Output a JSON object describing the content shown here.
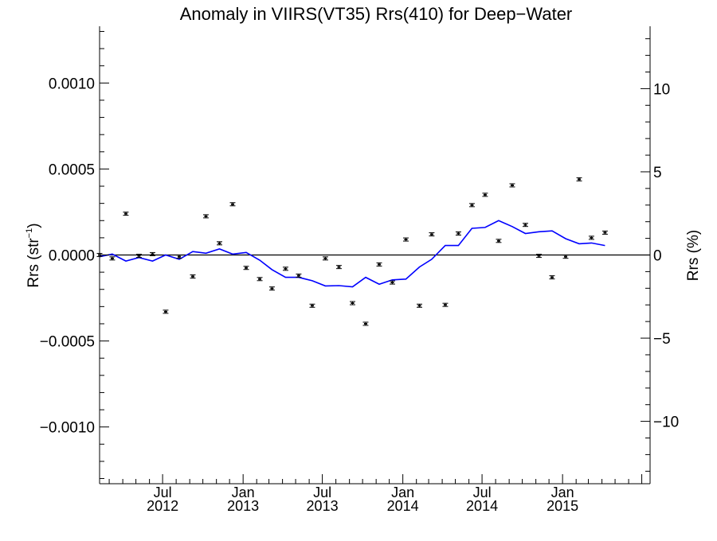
{
  "chart_data": {
    "type": "scatter",
    "title": "Anomaly in VIIRS(VT35) Rrs(410) for Deep−Water",
    "ylabel_left": {
      "main": "Rrs (str",
      "sup": "−1",
      "close": ")"
    },
    "ylabel_right": "Rrs (%)",
    "xlim": [
      "2012-02-08",
      "2015-07-20"
    ],
    "ylim_left": [
      -0.00133,
      0.00133
    ],
    "ylim_right": [
      -13.75,
      13.75
    ],
    "left_yticks": [
      {
        "value": 0.001,
        "label": "0.0010"
      },
      {
        "value": 0.0005,
        "label": "0.0005"
      },
      {
        "value": 0.0,
        "label": "0.0000"
      },
      {
        "value": -0.0005,
        "label": "−0.0005"
      },
      {
        "value": -0.001,
        "label": "−0.0010"
      }
    ],
    "right_yticks": [
      {
        "value": 10,
        "label": "10"
      },
      {
        "value": 5,
        "label": "5"
      },
      {
        "value": 0,
        "label": "0"
      },
      {
        "value": -5,
        "label": "−5"
      },
      {
        "value": -10,
        "label": "−10"
      }
    ],
    "xticks": [
      {
        "date": "2012-07-01",
        "month": "Jul",
        "year": "2012"
      },
      {
        "date": "2013-01-01",
        "month": "Jan",
        "year": "2013"
      },
      {
        "date": "2013-07-01",
        "month": "Jul",
        "year": "2013"
      },
      {
        "date": "2014-01-01",
        "month": "Jan",
        "year": "2014"
      },
      {
        "date": "2014-07-01",
        "month": "Jul",
        "year": "2014"
      },
      {
        "date": "2015-01-01",
        "month": "Jan",
        "year": "2015"
      }
    ],
    "zero_line": true,
    "series": [
      {
        "kind": "points_with_error_bars",
        "color": "#000000",
        "points": [
          {
            "x": "2012-02-08",
            "y": 0.0
          },
          {
            "x": "2012-03-08",
            "y": -2e-05
          },
          {
            "x": "2012-04-08",
            "y": 0.00024
          },
          {
            "x": "2012-05-08",
            "y": -5e-06
          },
          {
            "x": "2012-06-08",
            "y": 5e-06
          },
          {
            "x": "2012-07-08",
            "y": -0.00033
          },
          {
            "x": "2012-08-08",
            "y": -1e-05
          },
          {
            "x": "2012-09-08",
            "y": -0.000125
          },
          {
            "x": "2012-10-08",
            "y": 0.000225
          },
          {
            "x": "2012-11-08",
            "y": 6.8e-05
          },
          {
            "x": "2012-12-08",
            "y": 0.000295
          },
          {
            "x": "2013-01-08",
            "y": -7.5e-05
          },
          {
            "x": "2013-02-08",
            "y": -0.00014
          },
          {
            "x": "2013-03-08",
            "y": -0.000195
          },
          {
            "x": "2013-04-08",
            "y": -8e-05
          },
          {
            "x": "2013-05-08",
            "y": -0.00012
          },
          {
            "x": "2013-06-08",
            "y": -0.000295
          },
          {
            "x": "2013-07-08",
            "y": -2e-05
          },
          {
            "x": "2013-08-08",
            "y": -7e-05
          },
          {
            "x": "2013-09-08",
            "y": -0.00028
          },
          {
            "x": "2013-10-08",
            "y": -0.0004
          },
          {
            "x": "2013-11-08",
            "y": -5.5e-05
          },
          {
            "x": "2013-12-08",
            "y": -0.00016
          },
          {
            "x": "2014-01-08",
            "y": 9e-05
          },
          {
            "x": "2014-02-08",
            "y": -0.000295
          },
          {
            "x": "2014-03-08",
            "y": 0.00012
          },
          {
            "x": "2014-04-08",
            "y": -0.00029
          },
          {
            "x": "2014-05-08",
            "y": 0.000125
          },
          {
            "x": "2014-06-08",
            "y": 0.00029
          },
          {
            "x": "2014-07-08",
            "y": 0.00035
          },
          {
            "x": "2014-08-08",
            "y": 8.2e-05
          },
          {
            "x": "2014-09-08",
            "y": 0.000405
          },
          {
            "x": "2014-10-08",
            "y": 0.000175
          },
          {
            "x": "2014-11-08",
            "y": -5e-06
          },
          {
            "x": "2014-12-08",
            "y": -0.00013
          },
          {
            "x": "2015-01-08",
            "y": -1e-05
          },
          {
            "x": "2015-02-08",
            "y": 0.00044
          },
          {
            "x": "2015-03-08",
            "y": 0.0001
          },
          {
            "x": "2015-04-08",
            "y": 0.00013
          }
        ]
      },
      {
        "kind": "line",
        "color": "#0000ff",
        "points": [
          {
            "x": "2012-02-08",
            "y": -1e-05
          },
          {
            "x": "2012-03-08",
            "y": 5e-06
          },
          {
            "x": "2012-04-08",
            "y": -3.5e-05
          },
          {
            "x": "2012-05-08",
            "y": -1.5e-05
          },
          {
            "x": "2012-06-08",
            "y": -3.5e-05
          },
          {
            "x": "2012-07-08",
            "y": 0.0
          },
          {
            "x": "2012-08-08",
            "y": -2.5e-05
          },
          {
            "x": "2012-09-08",
            "y": 2e-05
          },
          {
            "x": "2012-10-08",
            "y": 1e-05
          },
          {
            "x": "2012-11-08",
            "y": 3.5e-05
          },
          {
            "x": "2012-12-08",
            "y": 5e-06
          },
          {
            "x": "2013-01-08",
            "y": 1.5e-05
          },
          {
            "x": "2013-02-08",
            "y": -3e-05
          },
          {
            "x": "2013-03-08",
            "y": -8.5e-05
          },
          {
            "x": "2013-04-08",
            "y": -0.00013
          },
          {
            "x": "2013-05-08",
            "y": -0.00013
          },
          {
            "x": "2013-06-08",
            "y": -0.00015
          },
          {
            "x": "2013-07-08",
            "y": -0.00018
          },
          {
            "x": "2013-08-08",
            "y": -0.000178
          },
          {
            "x": "2013-09-08",
            "y": -0.000185
          },
          {
            "x": "2013-10-08",
            "y": -0.00013
          },
          {
            "x": "2013-11-08",
            "y": -0.00017
          },
          {
            "x": "2013-12-08",
            "y": -0.000145
          },
          {
            "x": "2014-01-08",
            "y": -0.00014
          },
          {
            "x": "2014-02-08",
            "y": -7e-05
          },
          {
            "x": "2014-03-08",
            "y": -2.5e-05
          },
          {
            "x": "2014-04-08",
            "y": 5.5e-05
          },
          {
            "x": "2014-05-08",
            "y": 5.5e-05
          },
          {
            "x": "2014-06-08",
            "y": 0.000155
          },
          {
            "x": "2014-07-08",
            "y": 0.00016
          },
          {
            "x": "2014-08-08",
            "y": 0.0002
          },
          {
            "x": "2014-09-08",
            "y": 0.000165
          },
          {
            "x": "2014-10-08",
            "y": 0.000125
          },
          {
            "x": "2014-11-08",
            "y": 0.000135
          },
          {
            "x": "2014-12-08",
            "y": 0.00014
          },
          {
            "x": "2015-01-08",
            "y": 9.5e-05
          },
          {
            "x": "2015-02-08",
            "y": 6.5e-05
          },
          {
            "x": "2015-03-08",
            "y": 7e-05
          },
          {
            "x": "2015-04-08",
            "y": 5.5e-05
          }
        ]
      }
    ]
  }
}
